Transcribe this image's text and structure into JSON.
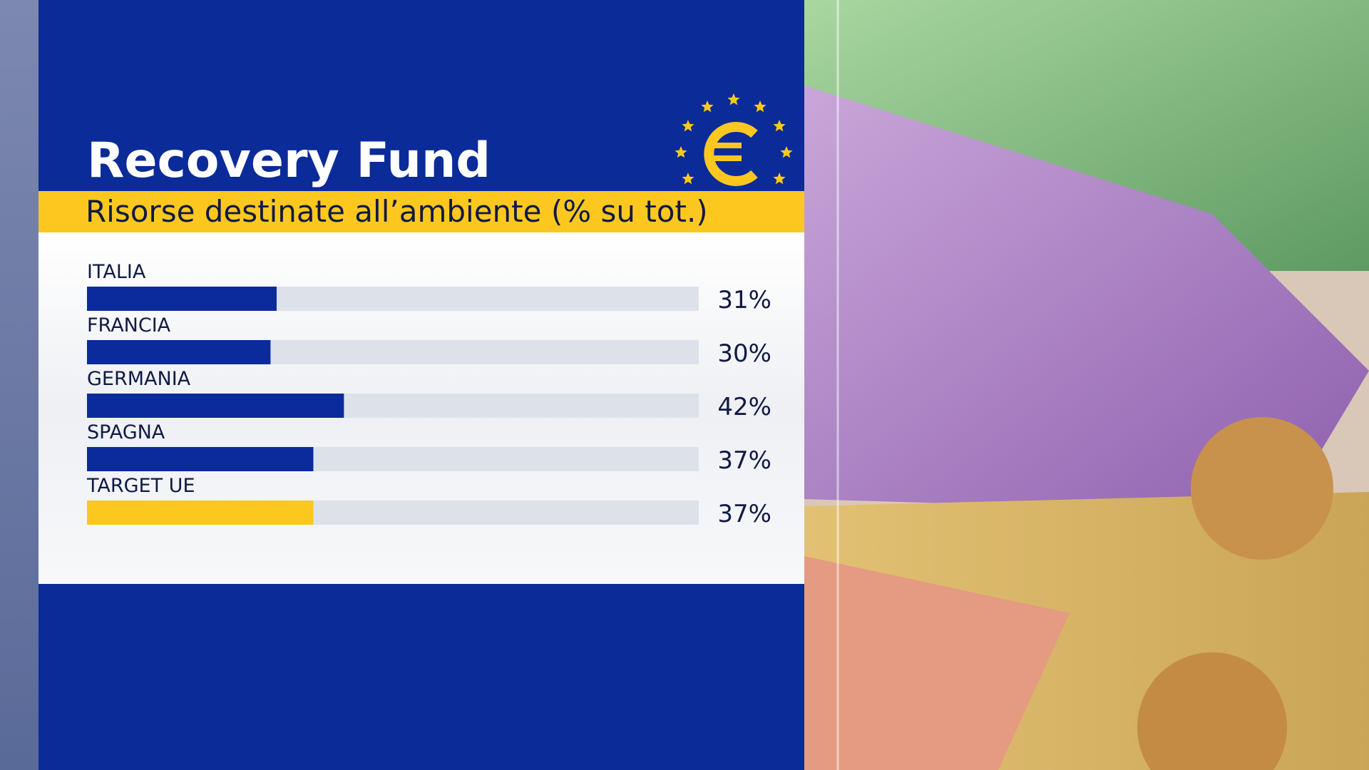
{
  "chart_data": {
    "type": "hbar",
    "title": "Recovery Fund",
    "subtitle": "Risorse destinate all’ambiente (% su tot.)",
    "categories": [
      "ITALIA",
      "FRANCIA",
      "GERMANIA",
      "SPAGNA",
      "TARGET UE"
    ],
    "values": [
      31,
      30,
      42,
      37,
      37
    ],
    "value_labels": [
      "31%",
      "30%",
      "42%",
      "37%",
      "37%"
    ],
    "colors": [
      "#0b2a9b",
      "#0b2a9b",
      "#0b2a9b",
      "#0b2a9b",
      "#fcc820"
    ],
    "xlim": [
      0,
      100
    ]
  }
}
